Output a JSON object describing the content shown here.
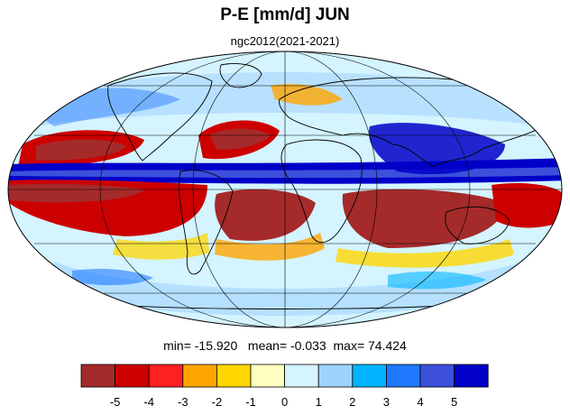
{
  "title": "P-E [mm/d] JUN",
  "subtitle": "ngc2012(2021-2021)",
  "stats": {
    "min_label": "min=",
    "min": "-15.920",
    "mean_label": "mean=",
    "mean": "-0.033",
    "max_label": "max=",
    "max": "74.424"
  },
  "colorbar": {
    "colors": [
      "#a52a2a",
      "#cd0000",
      "#ff2020",
      "#ffa500",
      "#ffd700",
      "#ffffc0",
      "#d4f4ff",
      "#a0d2ff",
      "#00b4ff",
      "#1e78ff",
      "#3c50dc",
      "#0000c8"
    ],
    "tick_labels": [
      "-5",
      "-4",
      "-3",
      "-2",
      "-1",
      "0",
      "1",
      "2",
      "3",
      "4",
      "5"
    ]
  }
}
